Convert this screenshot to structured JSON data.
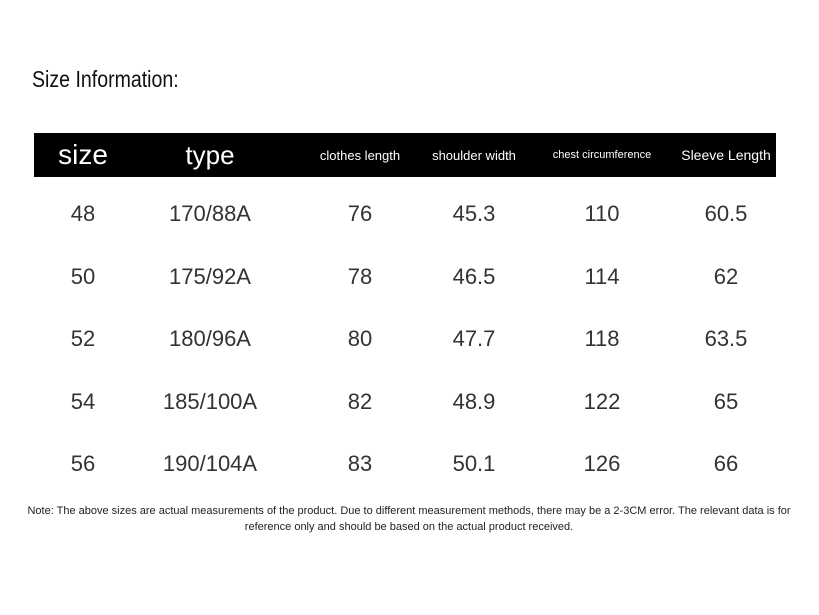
{
  "title": "Size Information:",
  "table": {
    "headers": [
      "size",
      "type",
      "clothes length",
      "shoulder width",
      "chest circumference",
      "Sleeve Length"
    ],
    "rows": [
      [
        "48",
        "170/88A",
        "76",
        "45.3",
        "110",
        "60.5"
      ],
      [
        "50",
        "175/92A",
        "78",
        "46.5",
        "114",
        "62"
      ],
      [
        "52",
        "180/96A",
        "80",
        "47.7",
        "118",
        "63.5"
      ],
      [
        "54",
        "185/100A",
        "82",
        "48.9",
        "122",
        "65"
      ],
      [
        "56",
        "190/104A",
        "83",
        "50.1",
        "126",
        "66"
      ]
    ]
  },
  "note": "Note: The above sizes are actual measurements of the product. Due to different measurement methods, there may be a 2-3CM error. The relevant data is for reference only and should be based on the actual product received."
}
